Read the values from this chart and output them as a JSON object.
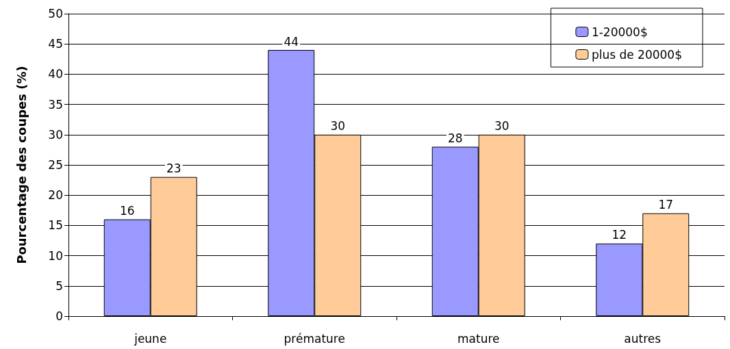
{
  "chart_data": {
    "type": "bar",
    "ylabel": "Pourcentage des coupes (%)",
    "categories": [
      "jeune",
      "prémature",
      "mature",
      "autres"
    ],
    "series": [
      {
        "name": "1-20000$",
        "color": "#9999ff",
        "values": [
          16,
          44,
          28,
          12
        ]
      },
      {
        "name": "plus de 20000$",
        "color": "#ffcc99",
        "values": [
          23,
          30,
          30,
          17
        ]
      }
    ],
    "ylim": [
      0,
      50
    ],
    "yticks": [
      0,
      5,
      10,
      15,
      20,
      25,
      30,
      35,
      40,
      45,
      50
    ],
    "grid": "y",
    "legend": "top right",
    "data_labels": true
  }
}
